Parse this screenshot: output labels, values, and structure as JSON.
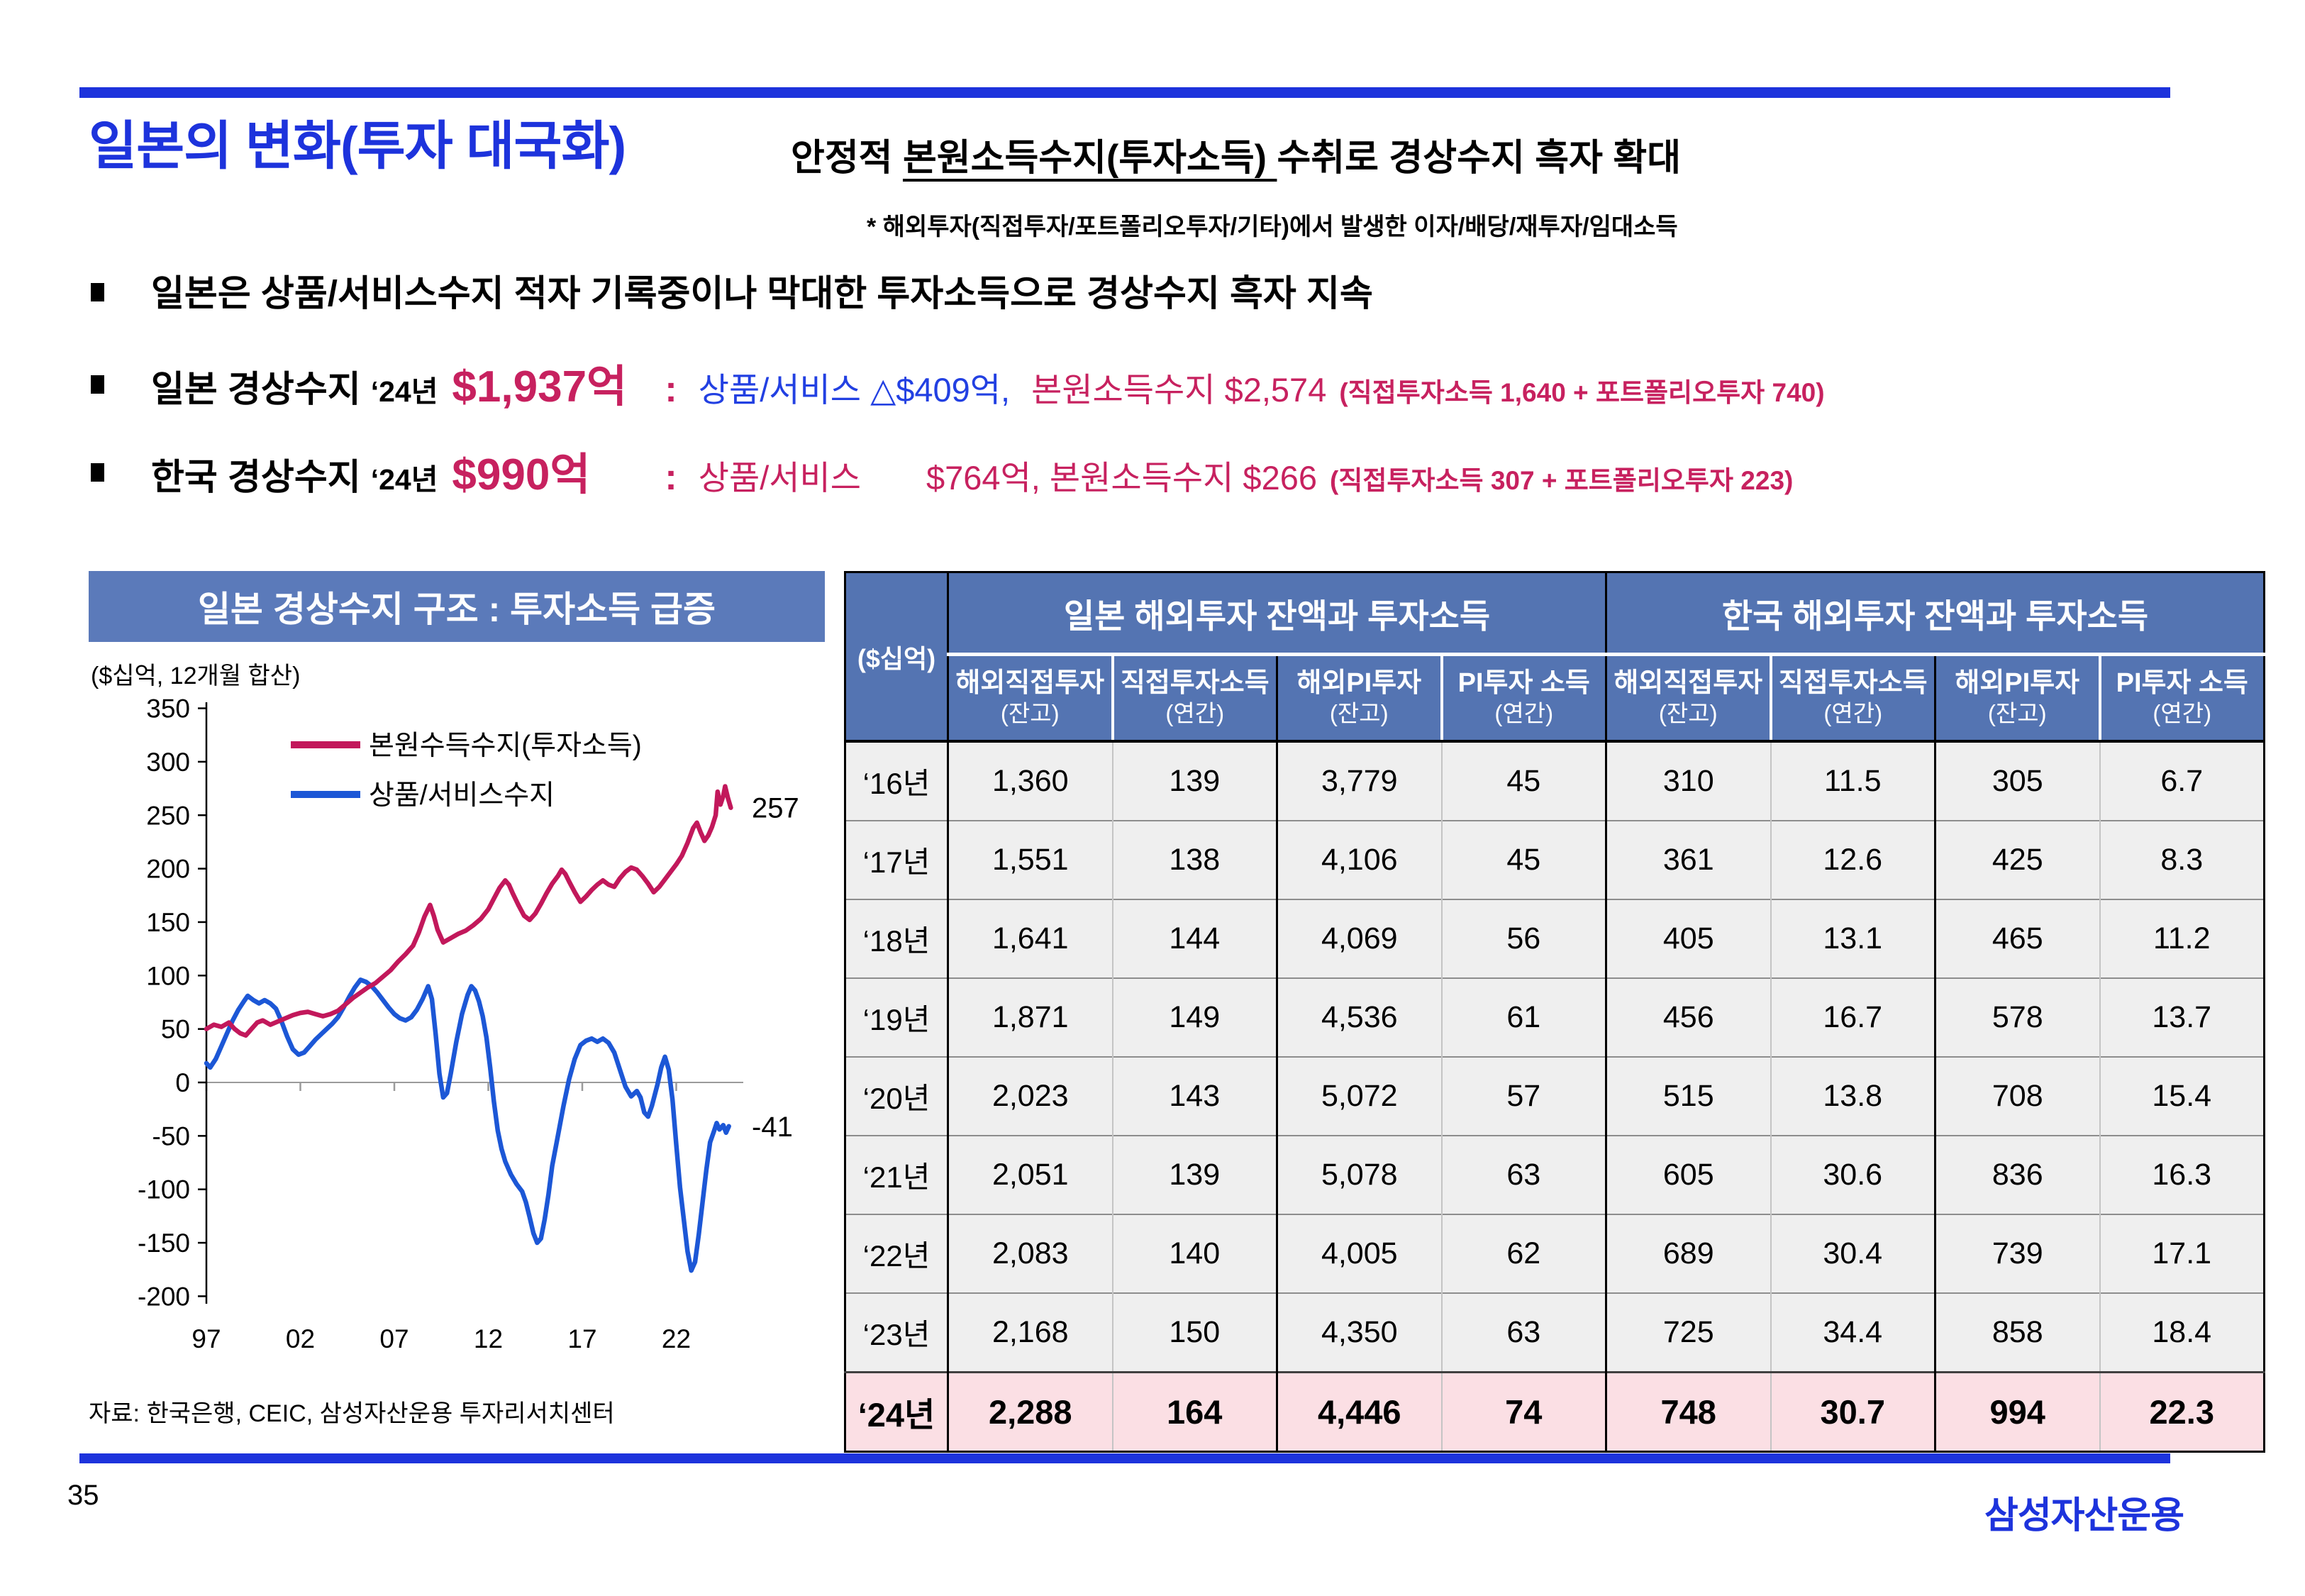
{
  "header": {
    "title": "일본의 변화(투자 대국화)",
    "subtitle_pre": "안정적 ",
    "subtitle_underline": "본원소득수지(투자소득) ",
    "subtitle_post": "수취로 경상수지 흑자 확대",
    "note": "* 해외투자(직접투자/포트폴리오투자/기타)에서 발생한 이자/배당/재투자/임대소득"
  },
  "bullets": {
    "b1": "일본은 상품/서비스수지 적자 기록중이나 막대한 투자소득으로 경상수지 흑자 지속",
    "b2": {
      "prefix": "일본 경상수지",
      "year": "‘24년",
      "amount": "$1,937억",
      "colon": ":",
      "seg_blue": "상품/서비스 △$409억,",
      "seg_pink": "본원소득수지 $2,574",
      "paren": "(직접투자소득 1,640 + 포트폴리오투자 740)"
    },
    "b3": {
      "prefix": "한국 경상수지",
      "year": "‘24년",
      "amount": "$990억",
      "colon": ":",
      "seg_pink1": "상품/서비스",
      "seg_pink2": "$764억, 본원소득수지 $266",
      "paren": "(직접투자소득 307 + 포트폴리오투자 223)"
    }
  },
  "chart_data": {
    "type": "line",
    "title": "일본 경상수지 구조 : 투자소득 급증",
    "unit_label": "($십억, 12개월 합산)",
    "ylabel": "",
    "xlabel": "",
    "ylim": [
      -200,
      350
    ],
    "grid": "zero-line-only",
    "legend_position": "top-left-inside",
    "y_ticks": [
      350,
      300,
      250,
      200,
      150,
      100,
      50,
      0,
      -50,
      -100,
      -150,
      -200
    ],
    "x_ticks": [
      {
        "label": "97",
        "year": 1997
      },
      {
        "label": "02",
        "year": 2002
      },
      {
        "label": "07",
        "year": 2007
      },
      {
        "label": "12",
        "year": 2012
      },
      {
        "label": "17",
        "year": 2017
      },
      {
        "label": "22",
        "year": 2022
      }
    ],
    "series": [
      {
        "name": "본원수득수지(투자소득)",
        "color": "#c2185b",
        "end_label": "257",
        "end_value": 257,
        "points": [
          [
            1997,
            50
          ],
          [
            1997.4,
            54
          ],
          [
            1997.8,
            52
          ],
          [
            1998.2,
            56
          ],
          [
            1998.5,
            50
          ],
          [
            1998.8,
            46
          ],
          [
            1999.1,
            44
          ],
          [
            1999.4,
            50
          ],
          [
            1999.7,
            56
          ],
          [
            2000,
            58
          ],
          [
            2000.4,
            54
          ],
          [
            2000.8,
            57
          ],
          [
            2001.2,
            60
          ],
          [
            2001.6,
            63
          ],
          [
            2002,
            65
          ],
          [
            2002.4,
            66
          ],
          [
            2002.8,
            64
          ],
          [
            2003.2,
            62
          ],
          [
            2003.6,
            64
          ],
          [
            2004,
            67
          ],
          [
            2004.4,
            73
          ],
          [
            2004.8,
            79
          ],
          [
            2005.2,
            84
          ],
          [
            2005.6,
            89
          ],
          [
            2006,
            93
          ],
          [
            2006.4,
            99
          ],
          [
            2006.8,
            105
          ],
          [
            2007.2,
            113
          ],
          [
            2007.6,
            120
          ],
          [
            2008,
            128
          ],
          [
            2008.3,
            140
          ],
          [
            2008.6,
            155
          ],
          [
            2008.9,
            166
          ],
          [
            2009.1,
            156
          ],
          [
            2009.3,
            143
          ],
          [
            2009.6,
            131
          ],
          [
            2010,
            135
          ],
          [
            2010.4,
            139
          ],
          [
            2010.8,
            142
          ],
          [
            2011.2,
            147
          ],
          [
            2011.6,
            153
          ],
          [
            2012,
            162
          ],
          [
            2012.3,
            172
          ],
          [
            2012.6,
            182
          ],
          [
            2012.9,
            189
          ],
          [
            2013.1,
            185
          ],
          [
            2013.3,
            177
          ],
          [
            2013.6,
            166
          ],
          [
            2013.9,
            156
          ],
          [
            2014.2,
            152
          ],
          [
            2014.5,
            158
          ],
          [
            2014.8,
            167
          ],
          [
            2015.1,
            177
          ],
          [
            2015.4,
            186
          ],
          [
            2015.7,
            193
          ],
          [
            2015.9,
            199
          ],
          [
            2016.1,
            195
          ],
          [
            2016.3,
            188
          ],
          [
            2016.6,
            178
          ],
          [
            2016.9,
            169
          ],
          [
            2017.2,
            174
          ],
          [
            2017.5,
            180
          ],
          [
            2017.8,
            185
          ],
          [
            2018.1,
            189
          ],
          [
            2018.4,
            185
          ],
          [
            2018.7,
            183
          ],
          [
            2019,
            191
          ],
          [
            2019.3,
            197
          ],
          [
            2019.6,
            201
          ],
          [
            2019.9,
            199
          ],
          [
            2020.2,
            193
          ],
          [
            2020.5,
            186
          ],
          [
            2020.8,
            178
          ],
          [
            2021.1,
            183
          ],
          [
            2021.4,
            190
          ],
          [
            2021.7,
            197
          ],
          [
            2022,
            204
          ],
          [
            2022.3,
            212
          ],
          [
            2022.6,
            224
          ],
          [
            2022.9,
            238
          ],
          [
            2023.1,
            243
          ],
          [
            2023.3,
            234
          ],
          [
            2023.5,
            226
          ],
          [
            2023.7,
            231
          ],
          [
            2023.9,
            239
          ],
          [
            2024.1,
            250
          ],
          [
            2024.2,
            272
          ],
          [
            2024.35,
            260
          ],
          [
            2024.5,
            268
          ],
          [
            2024.6,
            277
          ],
          [
            2024.75,
            266
          ],
          [
            2024.9,
            257
          ]
        ]
      },
      {
        "name": "상품/서비스수지",
        "color": "#1c57d6",
        "end_label": "-41",
        "end_value": -41,
        "points": [
          [
            1997,
            18
          ],
          [
            1997.2,
            14
          ],
          [
            1997.5,
            22
          ],
          [
            1997.8,
            34
          ],
          [
            1998.1,
            46
          ],
          [
            1998.4,
            58
          ],
          [
            1998.7,
            68
          ],
          [
            1999,
            76
          ],
          [
            1999.2,
            81
          ],
          [
            1999.5,
            77
          ],
          [
            1999.8,
            74
          ],
          [
            2000.1,
            77
          ],
          [
            2000.4,
            74
          ],
          [
            2000.7,
            69
          ],
          [
            2001,
            57
          ],
          [
            2001.3,
            43
          ],
          [
            2001.6,
            31
          ],
          [
            2001.9,
            26
          ],
          [
            2002.2,
            28
          ],
          [
            2002.5,
            34
          ],
          [
            2002.8,
            40
          ],
          [
            2003.1,
            45
          ],
          [
            2003.4,
            50
          ],
          [
            2003.7,
            55
          ],
          [
            2004,
            61
          ],
          [
            2004.3,
            70
          ],
          [
            2004.6,
            80
          ],
          [
            2004.9,
            89
          ],
          [
            2005.2,
            96
          ],
          [
            2005.5,
            94
          ],
          [
            2005.8,
            90
          ],
          [
            2006.1,
            84
          ],
          [
            2006.4,
            77
          ],
          [
            2006.7,
            70
          ],
          [
            2007,
            64
          ],
          [
            2007.3,
            60
          ],
          [
            2007.6,
            58
          ],
          [
            2007.9,
            61
          ],
          [
            2008.2,
            68
          ],
          [
            2008.5,
            78
          ],
          [
            2008.8,
            90
          ],
          [
            2009,
            78
          ],
          [
            2009.2,
            45
          ],
          [
            2009.4,
            8
          ],
          [
            2009.6,
            -14
          ],
          [
            2009.8,
            -10
          ],
          [
            2010,
            8
          ],
          [
            2010.3,
            38
          ],
          [
            2010.6,
            64
          ],
          [
            2010.9,
            82
          ],
          [
            2011.1,
            90
          ],
          [
            2011.3,
            86
          ],
          [
            2011.5,
            76
          ],
          [
            2011.7,
            62
          ],
          [
            2011.9,
            42
          ],
          [
            2012.1,
            14
          ],
          [
            2012.3,
            -18
          ],
          [
            2012.5,
            -45
          ],
          [
            2012.7,
            -62
          ],
          [
            2012.9,
            -74
          ],
          [
            2013.2,
            -86
          ],
          [
            2013.5,
            -95
          ],
          [
            2013.8,
            -102
          ],
          [
            2014,
            -112
          ],
          [
            2014.2,
            -126
          ],
          [
            2014.4,
            -141
          ],
          [
            2014.6,
            -150
          ],
          [
            2014.8,
            -146
          ],
          [
            2015,
            -128
          ],
          [
            2015.2,
            -105
          ],
          [
            2015.4,
            -78
          ],
          [
            2015.7,
            -50
          ],
          [
            2016,
            -22
          ],
          [
            2016.3,
            3
          ],
          [
            2016.6,
            22
          ],
          [
            2016.9,
            35
          ],
          [
            2017.2,
            39
          ],
          [
            2017.5,
            41
          ],
          [
            2017.8,
            38
          ],
          [
            2018.1,
            41
          ],
          [
            2018.4,
            37
          ],
          [
            2018.7,
            28
          ],
          [
            2019,
            12
          ],
          [
            2019.3,
            -4
          ],
          [
            2019.6,
            -13
          ],
          [
            2019.9,
            -8
          ],
          [
            2020.1,
            -14
          ],
          [
            2020.3,
            -28
          ],
          [
            2020.5,
            -32
          ],
          [
            2020.7,
            -22
          ],
          [
            2021,
            -2
          ],
          [
            2021.2,
            14
          ],
          [
            2021.4,
            24
          ],
          [
            2021.6,
            12
          ],
          [
            2021.8,
            -16
          ],
          [
            2022,
            -58
          ],
          [
            2022.2,
            -98
          ],
          [
            2022.4,
            -128
          ],
          [
            2022.6,
            -158
          ],
          [
            2022.8,
            -176
          ],
          [
            2023,
            -168
          ],
          [
            2023.2,
            -142
          ],
          [
            2023.4,
            -112
          ],
          [
            2023.6,
            -82
          ],
          [
            2023.8,
            -56
          ],
          [
            2024,
            -46
          ],
          [
            2024.15,
            -38
          ],
          [
            2024.3,
            -44
          ],
          [
            2024.5,
            -40
          ],
          [
            2024.65,
            -47
          ],
          [
            2024.8,
            -41
          ]
        ]
      }
    ]
  },
  "table": {
    "unit_label": "($십억)",
    "groups": [
      "일본 해외투자 잔액과 투자소득",
      "한국 해외투자 잔액과 투자소득"
    ],
    "columns": [
      {
        "main": "해외직접투자",
        "sub": "(잔고)"
      },
      {
        "main": "직접투자소득",
        "sub": "(연간)"
      },
      {
        "main": "해외PI투자",
        "sub": "(잔고)"
      },
      {
        "main": "PI투자 소득",
        "sub": "(연간)"
      },
      {
        "main": "해외직접투자",
        "sub": "(잔고)"
      },
      {
        "main": "직접투자소득",
        "sub": "(연간)"
      },
      {
        "main": "해외PI투자",
        "sub": "(잔고)"
      },
      {
        "main": "PI투자 소득",
        "sub": "(연간)"
      }
    ],
    "rows": [
      {
        "year": "‘16년",
        "values": [
          "1,360",
          "139",
          "3,779",
          "45",
          "310",
          "11.5",
          "305",
          "6.7"
        ]
      },
      {
        "year": "‘17년",
        "values": [
          "1,551",
          "138",
          "4,106",
          "45",
          "361",
          "12.6",
          "425",
          "8.3"
        ]
      },
      {
        "year": "‘18년",
        "values": [
          "1,641",
          "144",
          "4,069",
          "56",
          "405",
          "13.1",
          "465",
          "11.2"
        ]
      },
      {
        "year": "‘19년",
        "values": [
          "1,871",
          "149",
          "4,536",
          "61",
          "456",
          "16.7",
          "578",
          "13.7"
        ]
      },
      {
        "year": "‘20년",
        "values": [
          "2,023",
          "143",
          "5,072",
          "57",
          "515",
          "13.8",
          "708",
          "15.4"
        ]
      },
      {
        "year": "‘21년",
        "values": [
          "2,051",
          "139",
          "5,078",
          "63",
          "605",
          "30.6",
          "836",
          "16.3"
        ]
      },
      {
        "year": "‘22년",
        "values": [
          "2,083",
          "140",
          "4,005",
          "62",
          "689",
          "30.4",
          "739",
          "17.1"
        ]
      },
      {
        "year": "‘23년",
        "values": [
          "2,168",
          "150",
          "4,350",
          "63",
          "725",
          "34.4",
          "858",
          "18.4"
        ]
      },
      {
        "year": "‘24년",
        "highlight": true,
        "values": [
          "2,288",
          "164",
          "4,446",
          "74",
          "748",
          "30.7",
          "994",
          "22.3"
        ]
      }
    ]
  },
  "footer": {
    "source": "자료: 한국은행, CEIC, 삼성자산운용 투자리서치센터",
    "page": "35",
    "logo": "삼성자산운용"
  },
  "colors": {
    "accent_blue": "#1d33dc",
    "text_pink": "#c7215f",
    "text_blue": "#2240e2",
    "table_header_blue": "#5474b2",
    "banner_blue": "#5b7aba",
    "row_gray": "#efefef",
    "highlight_pink": "#fbdfe4",
    "chart_crimson": "#c2185b",
    "chart_blue": "#1c57d6"
  }
}
